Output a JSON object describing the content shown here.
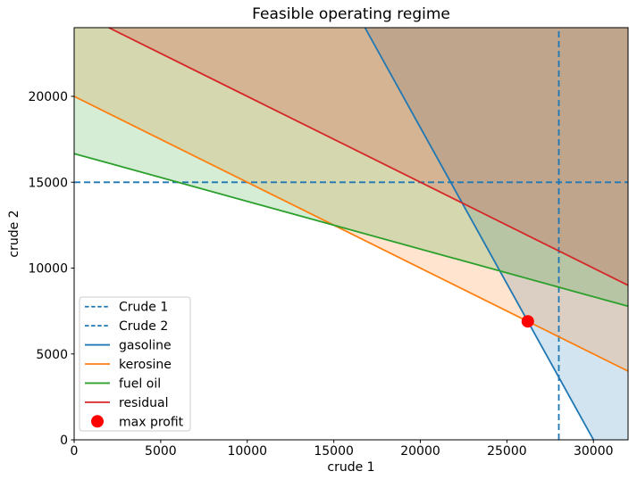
{
  "chart_data": {
    "type": "line",
    "title": "Feasible operating regime",
    "xlabel": "crude 1",
    "ylabel": "crude 2",
    "xlim": [
      0,
      32000
    ],
    "ylim": [
      0,
      24000
    ],
    "xticks": [
      0,
      5000,
      10000,
      15000,
      20000,
      25000,
      30000
    ],
    "yticks": [
      0,
      5000,
      10000,
      15000,
      20000
    ],
    "grid": false,
    "fill_alpha": 0.2,
    "series": [
      {
        "name": "Crude 1",
        "kind": "vline",
        "style": "dashed",
        "color": "#1f77b4",
        "x": 28000,
        "points": [
          [
            28000,
            0
          ],
          [
            28000,
            24000
          ]
        ]
      },
      {
        "name": "Crude 2",
        "kind": "hline",
        "style": "dashed",
        "color": "#1f77b4",
        "y": 15000,
        "points": [
          [
            0,
            15000
          ],
          [
            32000,
            15000
          ]
        ]
      },
      {
        "name": "gasoline",
        "kind": "constraint",
        "style": "solid",
        "color": "#1f77b4",
        "points": [
          [
            16800,
            24000
          ],
          [
            30000,
            0
          ]
        ],
        "shaded_region": [
          [
            16800,
            24000
          ],
          [
            32000,
            24000
          ],
          [
            32000,
            0
          ],
          [
            30000,
            0
          ]
        ]
      },
      {
        "name": "kerosine",
        "kind": "constraint",
        "style": "solid",
        "color": "#ff7f0e",
        "points": [
          [
            0,
            20000
          ],
          [
            32000,
            4000
          ]
        ],
        "shaded_region": [
          [
            0,
            24000
          ],
          [
            32000,
            24000
          ],
          [
            32000,
            4000
          ],
          [
            0,
            20000
          ]
        ]
      },
      {
        "name": "fuel oil",
        "kind": "constraint",
        "style": "solid",
        "color": "#2ca02c",
        "points": [
          [
            0,
            16667
          ],
          [
            32000,
            7778
          ]
        ],
        "shaded_region": [
          [
            0,
            24000
          ],
          [
            32000,
            24000
          ],
          [
            32000,
            7778
          ],
          [
            0,
            16667
          ]
        ]
      },
      {
        "name": "residual",
        "kind": "constraint",
        "style": "solid",
        "color": "#d62728",
        "points": [
          [
            2000,
            24000
          ],
          [
            32000,
            9000
          ]
        ],
        "shaded_region": [
          [
            2000,
            24000
          ],
          [
            32000,
            24000
          ],
          [
            32000,
            9000
          ]
        ]
      }
    ],
    "points": [
      {
        "name": "max profit",
        "x": 26207,
        "y": 6897,
        "color": "#ff0000",
        "marker": "circle"
      }
    ],
    "legend": {
      "position": "lower left",
      "entries": [
        {
          "label": "Crude 1",
          "color": "#1f77b4",
          "style": "dashed"
        },
        {
          "label": "Crude 2",
          "color": "#1f77b4",
          "style": "dashed"
        },
        {
          "label": "gasoline",
          "color": "#1f77b4",
          "style": "solid"
        },
        {
          "label": "kerosine",
          "color": "#ff7f0e",
          "style": "solid"
        },
        {
          "label": "fuel oil",
          "color": "#2ca02c",
          "style": "solid"
        },
        {
          "label": "residual",
          "color": "#d62728",
          "style": "solid"
        },
        {
          "label": "max profit",
          "color": "#ff0000",
          "style": "marker"
        }
      ]
    }
  }
}
